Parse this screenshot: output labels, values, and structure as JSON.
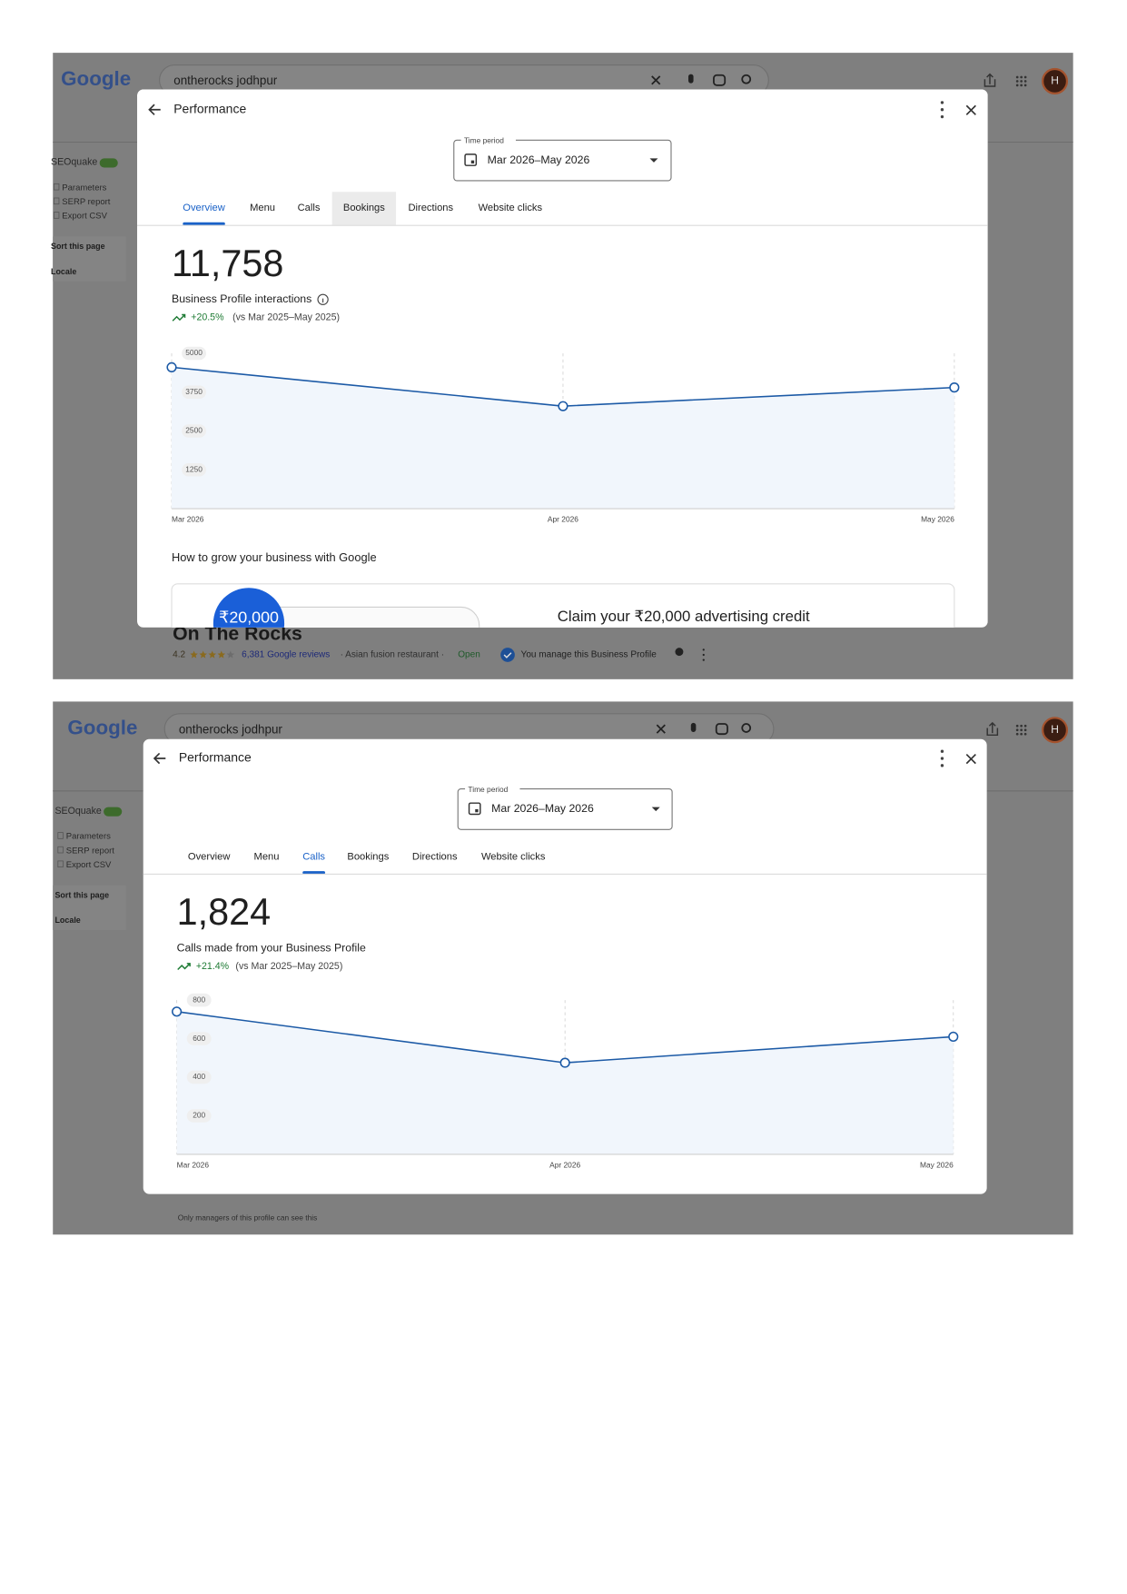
{
  "screens": [
    {
      "google_logo": "Google",
      "search_query": "ontherocks jodhpur",
      "avatar": "H",
      "sidebar": {
        "toggle": "SEOquake",
        "items": [
          "Parameters",
          "SERP report",
          "Export CSV"
        ],
        "sort": "Sort this page",
        "locale": "Locale"
      },
      "dialog": {
        "title": "Performance",
        "time_period_label": "Time period",
        "time_period": "Mar 2026–May 2026",
        "tabs": [
          "Overview",
          "Menu",
          "Calls",
          "Bookings",
          "Directions",
          "Website clicks"
        ],
        "active_tab": 0,
        "hovered_tab": 3,
        "total": "11,758",
        "metric": "Business Profile interactions",
        "change": "+20.5%",
        "comparison": "(vs Mar 2025–May 2025)",
        "grow_heading": "How to grow your business with Google",
        "promo_badge": "₹20,000",
        "promo_text": "Claim your ₹20,000 advertising credit"
      },
      "listing": {
        "name": "On The Rocks",
        "rating": "4.2",
        "reviews": "6,381 Google reviews",
        "category": "· Asian fusion restaurant ·",
        "status": "Open",
        "managed": "You manage this Business Profile"
      }
    },
    {
      "google_logo": "Google",
      "search_query": "ontherocks jodhpur",
      "avatar": "H",
      "sidebar": {
        "toggle": "SEOquake",
        "items": [
          "Parameters",
          "SERP report",
          "Export CSV"
        ],
        "sort": "Sort this page",
        "locale": "Locale"
      },
      "dialog": {
        "title": "Performance",
        "time_period_label": "Time period",
        "time_period": "Mar 2026–May 2026",
        "tabs": [
          "Overview",
          "Menu",
          "Calls",
          "Bookings",
          "Directions",
          "Website clicks"
        ],
        "active_tab": 2,
        "total": "1,824",
        "metric": "Calls made from your Business Profile",
        "change": "+21.4%",
        "comparison": "(vs Mar 2025–May 2025)"
      },
      "note": "Only managers of this profile can see this"
    }
  ],
  "chart_data": [
    {
      "type": "line",
      "categories": [
        "Mar 2026",
        "Apr 2026",
        "May 2026"
      ],
      "values": [
        4550,
        3300,
        3900
      ],
      "color": "#1c5aa6",
      "area_color": "#f1f6fc",
      "ylim": [
        0,
        5000
      ],
      "yticks": [
        1250,
        2500,
        3750,
        5000
      ]
    },
    {
      "type": "line",
      "categories": [
        "Mar 2026",
        "Apr 2026",
        "May 2026"
      ],
      "values": [
        740,
        475,
        610
      ],
      "color": "#1c5aa6",
      "area_color": "#f1f6fc",
      "ylim": [
        0,
        800
      ],
      "yticks": [
        200,
        400,
        600,
        800
      ]
    }
  ]
}
